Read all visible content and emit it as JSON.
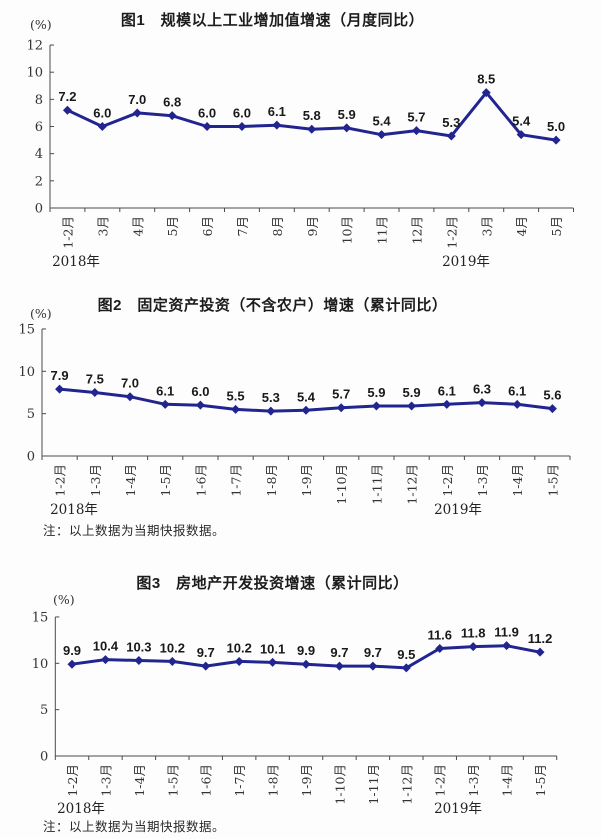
{
  "colors": {
    "line": "#22248f",
    "value_label": "#191919",
    "axis": "#4a4a4a",
    "tick_text": "#333333"
  },
  "chart_data": [
    {
      "type": "line",
      "title": "图1　规模以上工业增加值增速（月度同比）",
      "unit": "(%)",
      "categories": [
        "1-2月",
        "3月",
        "4月",
        "5月",
        "6月",
        "7月",
        "8月",
        "9月",
        "10月",
        "11月",
        "12月",
        "1-2月",
        "3月",
        "4月",
        "5月"
      ],
      "values": [
        7.2,
        6.0,
        7.0,
        6.8,
        6.0,
        6.0,
        6.1,
        5.8,
        5.9,
        5.4,
        5.7,
        5.3,
        8.5,
        5.4,
        5.0
      ],
      "years": [
        "2018年",
        "2019年"
      ],
      "ylim": [
        0,
        12
      ],
      "ytick_step": 2,
      "grid": "off",
      "legend": "none",
      "note": ""
    },
    {
      "type": "line",
      "title": "图2　固定资产投资（不含农户）增速（累计同比）",
      "unit": "(%)",
      "categories": [
        "1-2月",
        "1-3月",
        "1-4月",
        "1-5月",
        "1-6月",
        "1-7月",
        "1-8月",
        "1-9月",
        "1-10月",
        "1-11月",
        "1-12月",
        "1-2月",
        "1-3月",
        "1-4月",
        "1-5月"
      ],
      "values": [
        7.9,
        7.5,
        7.0,
        6.1,
        6.0,
        5.5,
        5.3,
        5.4,
        5.7,
        5.9,
        5.9,
        6.1,
        6.3,
        6.1,
        5.6
      ],
      "years": [
        "2018年",
        "2019年"
      ],
      "ylim": [
        0,
        15
      ],
      "ytick_step": 5,
      "grid": "off",
      "legend": "none",
      "note": "注：以上数据为当期快报数据。"
    },
    {
      "type": "line",
      "title": "图3　房地产开发投资增速（累计同比）",
      "unit": "(%)",
      "categories": [
        "1-2月",
        "1-3月",
        "1-4月",
        "1-5月",
        "1-6月",
        "1-7月",
        "1-8月",
        "1-9月",
        "1-10月",
        "1-11月",
        "1-12月",
        "1-2月",
        "1-3月",
        "1-4月",
        "1-5月"
      ],
      "values": [
        9.9,
        10.4,
        10.3,
        10.2,
        9.7,
        10.2,
        10.1,
        9.9,
        9.7,
        9.7,
        9.5,
        11.6,
        11.8,
        11.9,
        11.2
      ],
      "years": [
        "2018年",
        "2019年"
      ],
      "ylim": [
        0,
        15
      ],
      "ytick_step": 5,
      "grid": "off",
      "legend": "none",
      "note": "注：以上数据为当期快报数据。"
    }
  ]
}
